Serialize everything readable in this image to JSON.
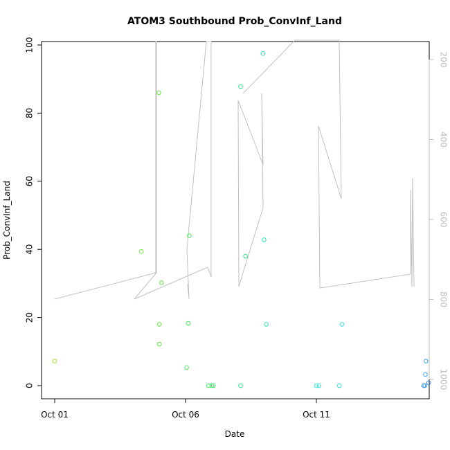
{
  "chart_data": {
    "type": "scatter",
    "title": "ATOM3 Southbound Prob_ConvInf_Land",
    "xlabel": "Date",
    "ylabel": "Prob_ConvInf_Land",
    "xlim": [
      "2023-10-01 00:00",
      "2023-10-15 18:00"
    ],
    "ylim": [
      0,
      100
    ],
    "x_ticks": [
      "Oct 01",
      "Oct 06",
      "Oct 11"
    ],
    "y_ticks": [
      0,
      20,
      40,
      60,
      80,
      100
    ],
    "right_axis": {
      "reversed": true,
      "lim": [
        180,
        1050
      ],
      "ticks": [
        200,
        400,
        600,
        800,
        1000
      ],
      "color": "#bdbdbd"
    },
    "grid": false,
    "legend": "none",
    "points": [
      {
        "t": "2023-10-01 00:00",
        "y": 7.2,
        "color": "#9ae62e"
      },
      {
        "t": "2023-10-04 07:30",
        "y": 39.4,
        "color": "#7be638"
      },
      {
        "t": "2023-10-04 23:30",
        "y": 86.0,
        "color": "#5ee640"
      },
      {
        "t": "2023-10-05 00:00",
        "y": 18.0,
        "color": "#5ee640"
      },
      {
        "t": "2023-10-05 00:00",
        "y": 12.2,
        "color": "#5ee640"
      },
      {
        "t": "2023-10-05 02:00",
        "y": 30.2,
        "color": "#5ee640"
      },
      {
        "t": "2023-10-06 01:00",
        "y": 5.3,
        "color": "#45e655"
      },
      {
        "t": "2023-10-06 02:30",
        "y": 18.3,
        "color": "#45e655"
      },
      {
        "t": "2023-10-06 03:30",
        "y": 44.0,
        "color": "#45e655"
      },
      {
        "t": "2023-10-06 21:00",
        "y": 0.0,
        "color": "#3de665"
      },
      {
        "t": "2023-10-07 00:00",
        "y": 0.0,
        "color": "#3de665"
      },
      {
        "t": "2023-10-07 01:30",
        "y": 0.0,
        "color": "#3de665"
      },
      {
        "t": "2023-10-08 02:30",
        "y": 0.0,
        "color": "#30e68a"
      },
      {
        "t": "2023-10-08 02:30",
        "y": 87.8,
        "color": "#30e68a"
      },
      {
        "t": "2023-10-08 07:00",
        "y": 38.0,
        "color": "#30e68a"
      },
      {
        "t": "2023-10-08 23:00",
        "y": 97.5,
        "color": "#2ee6b0"
      },
      {
        "t": "2023-10-09 00:00",
        "y": 42.8,
        "color": "#2ee6b0"
      },
      {
        "t": "2023-10-09 02:00",
        "y": 18.0,
        "color": "#2ee6b0"
      },
      {
        "t": "2023-10-11 00:00",
        "y": 0.0,
        "color": "#2ee6d8"
      },
      {
        "t": "2023-10-11 02:30",
        "y": 0.0,
        "color": "#2ee6d8"
      },
      {
        "t": "2023-10-11 21:00",
        "y": 0.0,
        "color": "#2ee0e6"
      },
      {
        "t": "2023-10-11 23:30",
        "y": 18.0,
        "color": "#2ee0e6"
      },
      {
        "t": "2023-10-15 02:30",
        "y": 0.0,
        "color": "#3ca0e6"
      },
      {
        "t": "2023-10-15 03:30",
        "y": 0.0,
        "color": "#3ca0e6"
      },
      {
        "t": "2023-10-15 04:00",
        "y": 3.3,
        "color": "#3ca0e6"
      },
      {
        "t": "2023-10-15 04:30",
        "y": 7.2,
        "color": "#3ca0e6"
      },
      {
        "t": "2023-10-15 07:00",
        "y": 0.8,
        "color": "#3c8ee6"
      }
    ],
    "line": {
      "color": "#c0c0c0",
      "axis": "right",
      "points": [
        {
          "t": "2023-10-01 00:00",
          "v": 800
        },
        {
          "t": "2023-10-04 23:00",
          "v": 767
        },
        {
          "t": "2023-10-04 23:30",
          "v": 145
        },
        {
          "t": "2023-10-05 00:00",
          "v": 145
        },
        {
          "t": "2023-10-05 00:30",
          "v": 767
        },
        {
          "t": "2023-10-04 02:30",
          "v": 800
        },
        {
          "t": "2023-10-04 02:30",
          "v": 800
        },
        {
          "t": "2023-10-06 09:00",
          "v": 740
        },
        {
          "t": "2023-10-07 01:30",
          "v": 770
        },
        {
          "t": "2023-10-06 19:00",
          "v": 145
        },
        {
          "t": "2023-10-06 21:00",
          "v": 145
        },
        {
          "t": "2023-10-06 21:00",
          "v": 145
        },
        {
          "t": "2023-10-07 01:00",
          "v": 145
        },
        {
          "t": "2023-10-07 01:30",
          "v": 810
        }
      ]
    },
    "line_segments": [
      {
        "pts": [
          [
            79,
            432
          ],
          [
            225,
            394
          ],
          [
            225,
            60
          ],
          [
            226,
            60
          ],
          [
            226,
            394
          ],
          [
            194,
            432
          ]
        ]
      },
      {
        "pts": [
          [
            194,
            432
          ],
          [
            300,
            386
          ],
          [
            305,
            400
          ],
          [
            305,
            60
          ],
          [
            298,
            60
          ],
          [
            270,
            360
          ],
          [
            273,
            432
          ],
          [
            271,
            410
          ]
        ]
      },
      {
        "pts": [
          [
            345,
            414
          ],
          [
            344,
            145
          ],
          [
            380,
            238
          ],
          [
            378,
            135
          ],
          [
            380,
            300
          ],
          [
            351,
            394
          ],
          [
            345,
            414
          ]
        ]
      },
      {
        "pts": [
          [
            351,
            135
          ],
          [
            426,
            58
          ],
          [
            490,
            58
          ],
          [
            490,
            62
          ],
          [
            493,
            287
          ],
          [
            460,
            182
          ],
          [
            462,
            416
          ],
          [
            593,
            396
          ],
          [
            593,
            274
          ],
          [
            595,
            414
          ],
          [
            596,
            257
          ],
          [
            598,
            414
          ]
        ]
      }
    ]
  }
}
